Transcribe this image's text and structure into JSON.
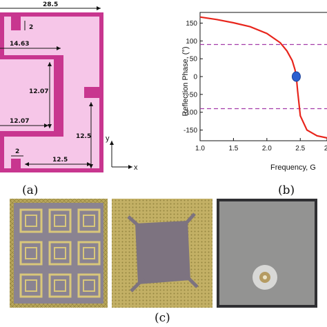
{
  "panel_a": {
    "label": "(a)",
    "dims": {
      "top": "28.5",
      "slot_top": "2",
      "inner_width": "14.63",
      "inner_height": "12.07",
      "inner_bottom": "12.07",
      "right_height": "12.5",
      "slot_bottom": "2",
      "bottom_right": "12.5"
    },
    "axis_y": "y",
    "axis_x": "x"
  },
  "panel_b": {
    "label": "(b)"
  },
  "panel_c": {
    "label": "(c)"
  },
  "colors": {
    "outer_frame": "#c8368f",
    "inner_fill": "#f6c6e8",
    "curve": "#e8251c",
    "marker": "#2b5fd0",
    "dashed": "#a23aa8"
  },
  "chart_data": {
    "type": "line",
    "x": [
      1.0,
      1.25,
      1.5,
      1.75,
      2.0,
      2.2,
      2.3,
      2.38,
      2.42,
      2.44,
      2.46,
      2.5,
      2.6,
      2.75,
      2.9
    ],
    "series": [
      {
        "values": [
          167,
          160,
          151,
          140,
          121,
          95,
          72,
          45,
          20,
          0,
          -40,
          -110,
          -150,
          -166,
          -172
        ]
      }
    ],
    "xlabel": "Frequency, G",
    "ylabel": "Reflection Phase, (°)",
    "xticks": [
      "1.0",
      "1.5",
      "2.0",
      "2.5",
      "2."
    ],
    "yticks": [
      "150",
      "100",
      "50",
      "0",
      "-50",
      "-100",
      "-150"
    ],
    "xlim": [
      1.0,
      2.9
    ],
    "ylim": [
      -180,
      180
    ],
    "reference_lines": [
      90,
      -90
    ],
    "marker_point": {
      "x": 2.44,
      "y": 0
    }
  }
}
